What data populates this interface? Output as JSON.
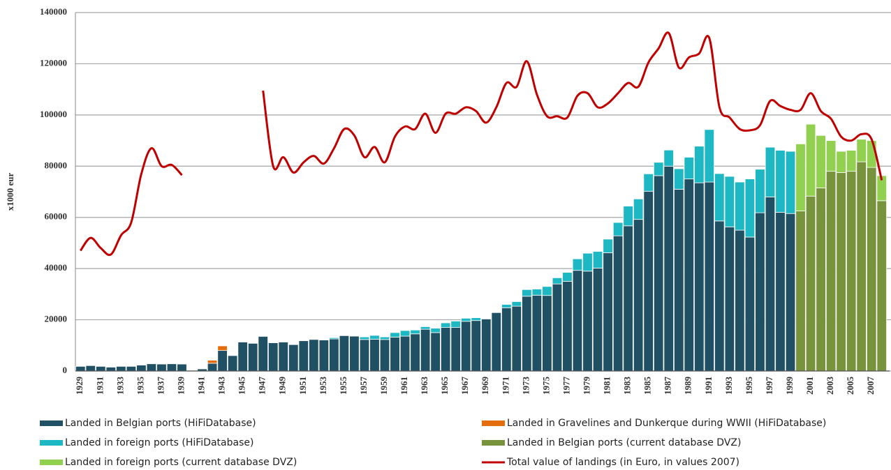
{
  "chart_data": {
    "type": "bar",
    "y_label": "x1000 eur",
    "ylim": [
      0,
      140000
    ],
    "yticks": [
      0,
      20000,
      40000,
      60000,
      80000,
      100000,
      120000,
      140000
    ],
    "grid": true,
    "stacked": true,
    "categories": [
      "1929",
      null,
      "1931",
      null,
      "1933",
      null,
      "1935",
      null,
      "1937",
      null,
      "1939",
      null,
      "1941",
      null,
      "1943",
      null,
      "1945",
      null,
      "1947",
      null,
      "1949",
      null,
      "1951",
      null,
      "1953",
      null,
      "1955",
      null,
      "1957",
      null,
      "1959",
      null,
      "1961",
      null,
      "1963",
      null,
      "1965",
      null,
      "1967",
      null,
      "1969",
      null,
      "1971",
      null,
      "1973",
      null,
      "1975",
      null,
      "1977",
      null,
      "1979",
      null,
      "1981",
      null,
      "1983",
      null,
      "1985",
      null,
      "1987",
      null,
      "1989",
      null,
      "1991",
      null,
      "1993",
      null,
      "1995",
      null,
      "1997",
      null,
      "1999",
      null,
      "2001",
      null,
      "2003",
      null,
      "2005",
      null,
      "2007",
      null
    ],
    "series": [
      {
        "name": "Landed in Belgian ports (HiFiDatabase)",
        "color": "#1f5064",
        "values": [
          1800,
          2100,
          1800,
          1500,
          1800,
          1800,
          2300,
          2800,
          2700,
          2800,
          2700,
          null,
          800,
          3000,
          8000,
          6000,
          11300,
          10800,
          13500,
          11000,
          11300,
          10300,
          11800,
          12300,
          12100,
          12500,
          13800,
          13600,
          12300,
          12400,
          12300,
          13200,
          13600,
          14500,
          16300,
          15000,
          17000,
          17000,
          19400,
          19700,
          20300,
          22800,
          24700,
          25300,
          29200,
          29600,
          29500,
          34000,
          35000,
          39300,
          39000,
          40200,
          46200,
          52800,
          56700,
          59200,
          70200,
          76300,
          80000,
          71000,
          75000,
          73500,
          73800,
          58600,
          56300,
          55000,
          52300,
          61800,
          68000,
          62000,
          61500,
          null,
          null,
          null,
          null,
          null,
          null,
          null,
          null,
          null
        ]
      },
      {
        "name": "Landed in Gravelines and Dunkerque during WWII  (HiFiDatabase)",
        "color": "#e46c0a",
        "values": [
          null,
          null,
          null,
          null,
          null,
          null,
          null,
          null,
          null,
          null,
          null,
          null,
          null,
          1200,
          1800,
          null,
          null,
          null,
          null,
          null,
          null,
          null,
          null,
          null,
          null,
          null,
          null,
          null,
          null,
          null,
          null,
          null,
          null,
          null,
          null,
          null,
          null,
          null,
          null,
          null,
          null,
          null,
          null,
          null,
          null,
          null,
          null,
          null,
          null,
          null,
          null,
          null,
          null,
          null,
          null,
          null,
          null,
          null,
          null,
          null,
          null,
          null,
          null,
          null,
          null,
          null,
          null,
          null,
          null,
          null,
          null,
          null,
          null,
          null,
          null,
          null,
          null,
          null,
          null,
          null
        ]
      },
      {
        "name": "Landed in foreign ports (HiFiDatabase)",
        "color": "#1db8c4",
        "values": [
          null,
          null,
          null,
          null,
          null,
          null,
          null,
          null,
          null,
          null,
          null,
          null,
          null,
          null,
          null,
          null,
          null,
          null,
          null,
          null,
          null,
          null,
          null,
          null,
          null,
          500,
          null,
          null,
          1000,
          1500,
          1000,
          1800,
          2200,
          1500,
          1000,
          1700,
          1800,
          2500,
          1200,
          1100,
          null,
          null,
          1300,
          1800,
          2600,
          2400,
          3500,
          2400,
          3500,
          4500,
          7000,
          6500,
          5300,
          5200,
          7700,
          8000,
          6800,
          5200,
          6300,
          8000,
          8500,
          14300,
          20500,
          18500,
          19700,
          18800,
          22700,
          17000,
          19400,
          24200,
          24300,
          null,
          null,
          null,
          null,
          null,
          null,
          null,
          null,
          null
        ]
      },
      {
        "name": "Landed in Belgian ports (current database DVZ)",
        "color": "#77933c",
        "values": [
          null,
          null,
          null,
          null,
          null,
          null,
          null,
          null,
          null,
          null,
          null,
          null,
          null,
          null,
          null,
          null,
          null,
          null,
          null,
          null,
          null,
          null,
          null,
          null,
          null,
          null,
          null,
          null,
          null,
          null,
          null,
          null,
          null,
          null,
          null,
          null,
          null,
          null,
          null,
          null,
          null,
          null,
          null,
          null,
          null,
          null,
          null,
          null,
          null,
          null,
          null,
          null,
          null,
          null,
          null,
          null,
          null,
          null,
          null,
          null,
          null,
          null,
          null,
          null,
          null,
          null,
          null,
          null,
          null,
          null,
          null,
          62500,
          68300,
          71500,
          78000,
          77500,
          78000,
          81700,
          79500,
          66500
        ]
      },
      {
        "name": "Landed in foreign ports (current database DVZ)",
        "color": "#92d050",
        "values": [
          null,
          null,
          null,
          null,
          null,
          null,
          null,
          null,
          null,
          null,
          null,
          null,
          null,
          null,
          null,
          null,
          null,
          null,
          null,
          null,
          null,
          null,
          null,
          null,
          null,
          null,
          null,
          null,
          null,
          null,
          null,
          null,
          null,
          null,
          null,
          null,
          null,
          null,
          null,
          null,
          null,
          null,
          null,
          null,
          null,
          null,
          null,
          null,
          null,
          null,
          null,
          null,
          null,
          null,
          null,
          null,
          null,
          null,
          null,
          null,
          null,
          null,
          null,
          null,
          null,
          null,
          null,
          null,
          null,
          null,
          null,
          26200,
          28100,
          20500,
          12000,
          8300,
          8200,
          8800,
          10500,
          9800
        ]
      },
      {
        "name": "Total value of landings (in Euro, in values 2007)",
        "color": "#c00000",
        "type": "line",
        "values": [
          47000,
          52000,
          48000,
          45500,
          53000,
          58000,
          77000,
          87000,
          80000,
          80500,
          76500,
          null,
          null,
          null,
          null,
          null,
          null,
          null,
          109500,
          80000,
          83500,
          77500,
          81500,
          84000,
          81000,
          87000,
          94500,
          92000,
          83500,
          87500,
          81500,
          91500,
          95500,
          94500,
          100500,
          93000,
          100500,
          100500,
          103000,
          101500,
          97000,
          103000,
          112500,
          111000,
          121000,
          108000,
          99500,
          99500,
          99000,
          107500,
          108500,
          103000,
          104500,
          108500,
          112500,
          111000,
          120500,
          126000,
          132000,
          118500,
          122500,
          124000,
          130000,
          103000,
          99000,
          94500,
          94000,
          96000,
          105500,
          103500,
          102000,
          102000,
          108500,
          101500,
          98500,
          91500,
          90000,
          92500,
          90500,
          74500
        ]
      }
    ]
  }
}
